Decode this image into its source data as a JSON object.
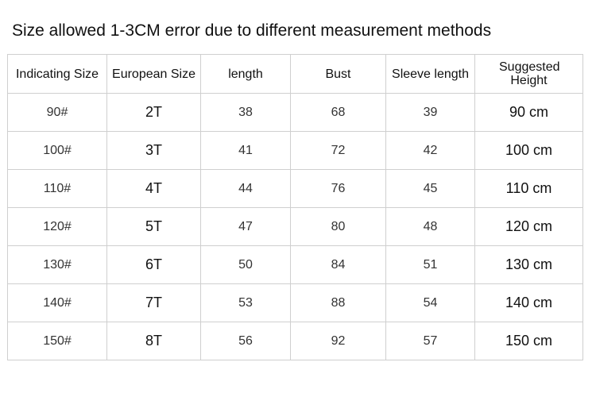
{
  "header": {
    "title": "Size allowed 1-3CM error due to different measurement methods"
  },
  "table": {
    "columns": [
      "Indicating Size",
      "European Size",
      "length",
      "Bust",
      "Sleeve length",
      "Suggested Height"
    ],
    "rows": [
      [
        "90#",
        "2T",
        38,
        68,
        39,
        "90 cm"
      ],
      [
        "100#",
        "3T",
        41,
        72,
        42,
        "100 cm"
      ],
      [
        "110#",
        "4T",
        44,
        76,
        45,
        "110 cm"
      ],
      [
        "120#",
        "5T",
        47,
        80,
        48,
        "120 cm"
      ],
      [
        "130#",
        "6T",
        50,
        84,
        51,
        "130 cm"
      ],
      [
        "140#",
        "7T",
        53,
        88,
        54,
        "140 cm"
      ],
      [
        "150#",
        "8T",
        56,
        92,
        57,
        "150 cm"
      ]
    ]
  }
}
